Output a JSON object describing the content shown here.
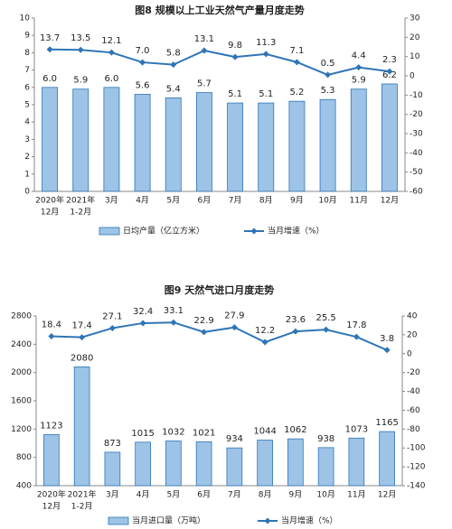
{
  "chart_data": [
    {
      "type": "combo",
      "title": "图8 规模以上工业天然气产量月度走势",
      "categories": [
        [
          "2020年",
          "12月"
        ],
        [
          "2021年",
          "1-2月"
        ],
        "3月",
        "4月",
        "5月",
        "6月",
        "7月",
        "8月",
        "9月",
        "10月",
        "11月",
        "12月"
      ],
      "ylim": [
        0,
        10
      ],
      "yticks": [
        0,
        1,
        2,
        3,
        4,
        5,
        6,
        7,
        8,
        9,
        10
      ],
      "y2lim": [
        -60,
        30
      ],
      "y2ticks": [
        -60,
        -50,
        -40,
        -30,
        -20,
        -10,
        0,
        10,
        20,
        30
      ],
      "series": [
        {
          "name": "日均产量（亿立方米）",
          "type": "bar",
          "color": "#9dc3e6",
          "values": [
            6.0,
            5.9,
            6.0,
            5.6,
            5.4,
            5.7,
            5.1,
            5.1,
            5.2,
            5.3,
            5.9,
            6.2
          ],
          "value_labels": [
            "6.0",
            "5.9",
            "6.0",
            "5.6",
            "5.4",
            "5.7",
            "5.1",
            "5.1",
            "5.2",
            "5.3",
            "5.9",
            "6.2"
          ]
        },
        {
          "name": "当月增速（%）",
          "type": "line",
          "axis": "y2",
          "color": "#2e75b6",
          "values": [
            13.7,
            13.5,
            12.1,
            7.0,
            5.8,
            13.1,
            9.8,
            11.3,
            7.1,
            0.5,
            4.4,
            2.3
          ],
          "value_labels": [
            "13.7",
            "13.5",
            "12.1",
            "7.0",
            "5.8",
            "13.1",
            "9.8",
            "11.3",
            "7.1",
            "0.5",
            "4.4",
            "2.3"
          ]
        }
      ]
    },
    {
      "type": "combo",
      "title": "图9 天然气进口月度走势",
      "categories": [
        [
          "2020年",
          "12月"
        ],
        [
          "2021年",
          "1-2月"
        ],
        "3月",
        "4月",
        "5月",
        "6月",
        "7月",
        "8月",
        "9月",
        "10月",
        "11月",
        "12月"
      ],
      "ylim": [
        400,
        2800
      ],
      "yticks": [
        400,
        800,
        1200,
        1600,
        2000,
        2400,
        2800
      ],
      "y2lim": [
        -140,
        40
      ],
      "y2ticks": [
        -140,
        -120,
        -100,
        -80,
        -60,
        -40,
        -20,
        0,
        20,
        40
      ],
      "series": [
        {
          "name": "当月进口量（万吨）",
          "type": "bar",
          "color": "#9dc3e6",
          "values": [
            1123,
            2080,
            873,
            1015,
            1032,
            1021,
            934,
            1044,
            1062,
            938,
            1073,
            1165
          ]
        },
        {
          "name": "当月增速（%）",
          "type": "line",
          "axis": "y2",
          "color": "#2e75b6",
          "values": [
            18.4,
            17.4,
            27.1,
            32.4,
            33.1,
            22.9,
            27.9,
            12.2,
            23.6,
            25.5,
            17.8,
            3.8
          ]
        }
      ]
    }
  ]
}
